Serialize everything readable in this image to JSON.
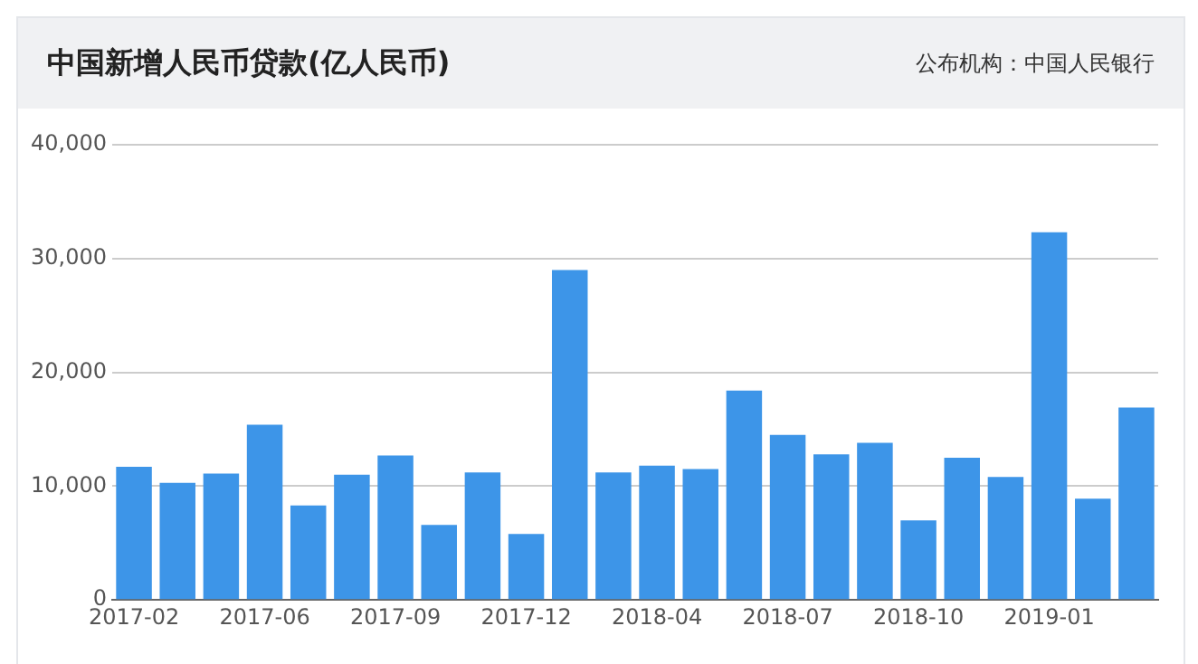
{
  "chart_data": {
    "type": "bar",
    "title": "中国新增人民币贷款(亿人民币)",
    "annotations": [
      "公布机构：中国人民银行"
    ],
    "categories": [
      "2017-02",
      null,
      null,
      "2017-06",
      null,
      null,
      "2017-09",
      null,
      null,
      "2017-12",
      null,
      null,
      "2018-04",
      null,
      null,
      "2018-07",
      null,
      null,
      "2018-10",
      null,
      null,
      "2019-01",
      null,
      null
    ],
    "values": [
      11700,
      10300,
      11100,
      15400,
      8300,
      11000,
      12700,
      6600,
      11200,
      5800,
      29000,
      11200,
      11800,
      11500,
      18400,
      14500,
      12800,
      13800,
      7000,
      12500,
      10800,
      32300,
      8900,
      16900
    ],
    "color": "#3d95e8",
    "ylim": [
      0,
      40000
    ],
    "yticks": [
      {
        "value": 0,
        "label": "0"
      },
      {
        "value": 10000,
        "label": "10,000"
      },
      {
        "value": 20000,
        "label": "20,000"
      },
      {
        "value": 30000,
        "label": "30,000"
      },
      {
        "value": 40000,
        "label": "40,000"
      }
    ],
    "grid": "y"
  }
}
